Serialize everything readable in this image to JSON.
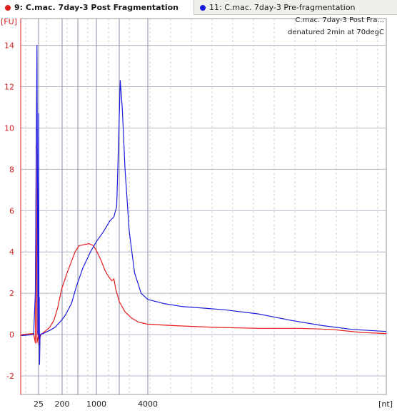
{
  "tabs": [
    {
      "label": "9: C.mac. 7day-3 Post Fragmentation",
      "color": "#e51c1c",
      "active": true
    },
    {
      "label": "11: C.mac. 7day-3 Pre-fragmentation",
      "color": "#1a1ae0",
      "active": false
    }
  ],
  "annotation": {
    "line1": "C.mac. 7day-3 Post Fra...",
    "line2": "denatured 2min at 70degC"
  },
  "chart_data": {
    "type": "line",
    "ylabel": "[FU]",
    "xlabel": "[nt]",
    "ylim": [
      -2.9,
      15.3
    ],
    "yticks": [
      -2,
      0,
      2,
      4,
      6,
      8,
      10,
      12,
      14
    ],
    "xticks": [
      "25",
      "200",
      "1000",
      "4000"
    ],
    "grid": true,
    "ladder_x": [
      25,
      200,
      500,
      1000,
      2000,
      4000
    ],
    "series": [
      {
        "name": "9: C.mac. 7day-3 Post Fragmentation",
        "color": "#e51c1c",
        "points": [
          [
            16,
            0.0
          ],
          [
            22,
            0.05
          ],
          [
            23,
            -0.4
          ],
          [
            23.5,
            9.2
          ],
          [
            24,
            -0.4
          ],
          [
            25,
            0.0
          ],
          [
            26,
            -0.5
          ],
          [
            27,
            -0.2
          ],
          [
            30,
            0.0
          ],
          [
            40,
            0.15
          ],
          [
            60,
            0.35
          ],
          [
            90,
            0.7
          ],
          [
            130,
            1.3
          ],
          [
            190,
            2.2
          ],
          [
            260,
            3.0
          ],
          [
            340,
            3.6
          ],
          [
            420,
            4.0
          ],
          [
            520,
            4.3
          ],
          [
            620,
            4.35
          ],
          [
            760,
            4.4
          ],
          [
            900,
            4.3
          ],
          [
            1020,
            4.0
          ],
          [
            1150,
            3.6
          ],
          [
            1300,
            3.1
          ],
          [
            1450,
            2.8
          ],
          [
            1600,
            2.6
          ],
          [
            1700,
            2.7
          ],
          [
            1800,
            2.2
          ],
          [
            2000,
            1.6
          ],
          [
            2300,
            1.1
          ],
          [
            2700,
            0.8
          ],
          [
            3200,
            0.6
          ],
          [
            4000,
            0.5
          ],
          [
            5200,
            0.45
          ],
          [
            7000,
            0.4
          ],
          [
            10000,
            0.35
          ],
          [
            15000,
            0.3
          ],
          [
            22000,
            0.3
          ],
          [
            28000,
            0.25
          ],
          [
            34000,
            0.1
          ],
          [
            40000,
            0.05
          ]
        ]
      },
      {
        "name": "11: C.mac. 7day-3 Pre-fragmentation",
        "color": "#1a1ae0",
        "points": [
          [
            16,
            -0.05
          ],
          [
            22,
            0.0
          ],
          [
            23,
            2.0
          ],
          [
            24,
            14.0
          ],
          [
            24.6,
            0.0
          ],
          [
            25.3,
            10.7
          ],
          [
            25.8,
            -0.2
          ],
          [
            26.4,
            1.8
          ],
          [
            27,
            -1.45
          ],
          [
            28,
            0.0
          ],
          [
            35,
            0.05
          ],
          [
            60,
            0.2
          ],
          [
            100,
            0.35
          ],
          [
            160,
            0.6
          ],
          [
            230,
            0.9
          ],
          [
            330,
            1.5
          ],
          [
            450,
            2.3
          ],
          [
            600,
            3.2
          ],
          [
            800,
            4.0
          ],
          [
            1000,
            4.5
          ],
          [
            1250,
            5.0
          ],
          [
            1500,
            5.5
          ],
          [
            1700,
            5.7
          ],
          [
            1850,
            6.2
          ],
          [
            1950,
            9.0
          ],
          [
            2050,
            12.3
          ],
          [
            2150,
            11.0
          ],
          [
            2300,
            8.0
          ],
          [
            2550,
            5.0
          ],
          [
            2900,
            3.0
          ],
          [
            3400,
            2.0
          ],
          [
            4000,
            1.7
          ],
          [
            5000,
            1.5
          ],
          [
            6500,
            1.35
          ],
          [
            8000,
            1.3
          ],
          [
            11000,
            1.2
          ],
          [
            15000,
            1.0
          ],
          [
            20000,
            0.7
          ],
          [
            26000,
            0.45
          ],
          [
            32000,
            0.25
          ],
          [
            40000,
            0.15
          ]
        ]
      }
    ]
  }
}
